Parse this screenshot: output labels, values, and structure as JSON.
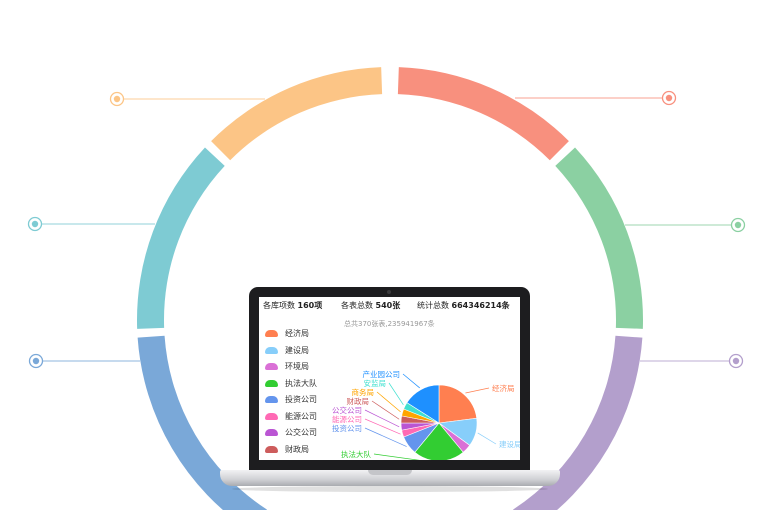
{
  "arc_segments": [
    {
      "name": "blue",
      "color": "#7aa8d8"
    },
    {
      "name": "teal",
      "color": "#7ecbd3"
    },
    {
      "name": "orange",
      "color": "#fcc586"
    },
    {
      "name": "salmon",
      "color": "#f8907e"
    },
    {
      "name": "green",
      "color": "#8bd0a2"
    },
    {
      "name": "purple",
      "color": "#b39fcc"
    }
  ],
  "dashboard": {
    "stat1_label": "各库项数",
    "stat1_value": "160项",
    "stat2_label": "各表总数",
    "stat2_value": "540张",
    "stat3_label": "统计总数",
    "stat3_value": "664346214条",
    "subtitle": "总共370张表,235941967条",
    "legend": [
      {
        "label": "经济局",
        "color": "#ff7f50"
      },
      {
        "label": "建设局",
        "color": "#87cefa"
      },
      {
        "label": "环境局",
        "color": "#da70d6"
      },
      {
        "label": "执法大队",
        "color": "#32cd32"
      },
      {
        "label": "投资公司",
        "color": "#6495ed"
      },
      {
        "label": "能源公司",
        "color": "#ff69b4"
      },
      {
        "label": "公交公司",
        "color": "#ba55d3"
      },
      {
        "label": "财政局",
        "color": "#cd5c5c"
      },
      {
        "label": "商务局",
        "color": "#ffa500"
      }
    ]
  },
  "chart_data": {
    "type": "pie",
    "slices": [
      {
        "label": "经济局",
        "value": 23,
        "color": "#ff7f50"
      },
      {
        "label": "建设局",
        "value": 12,
        "color": "#87cefa"
      },
      {
        "label": "环境局",
        "value": 4,
        "color": "#da70d6"
      },
      {
        "label": "执法大队",
        "value": 22,
        "color": "#32cd32"
      },
      {
        "label": "投资公司",
        "value": 8,
        "color": "#6495ed"
      },
      {
        "label": "能源公司",
        "value": 3,
        "color": "#ff69b4"
      },
      {
        "label": "公交公司",
        "value": 3,
        "color": "#ba55d3"
      },
      {
        "label": "财政局",
        "value": 3,
        "color": "#cd5c5c"
      },
      {
        "label": "商务局",
        "value": 3,
        "color": "#ffa500"
      },
      {
        "label": "安监局",
        "value": 3,
        "color": "#40e0d0"
      },
      {
        "label": "产业园公司",
        "value": 16,
        "color": "#1e90ff"
      }
    ]
  }
}
